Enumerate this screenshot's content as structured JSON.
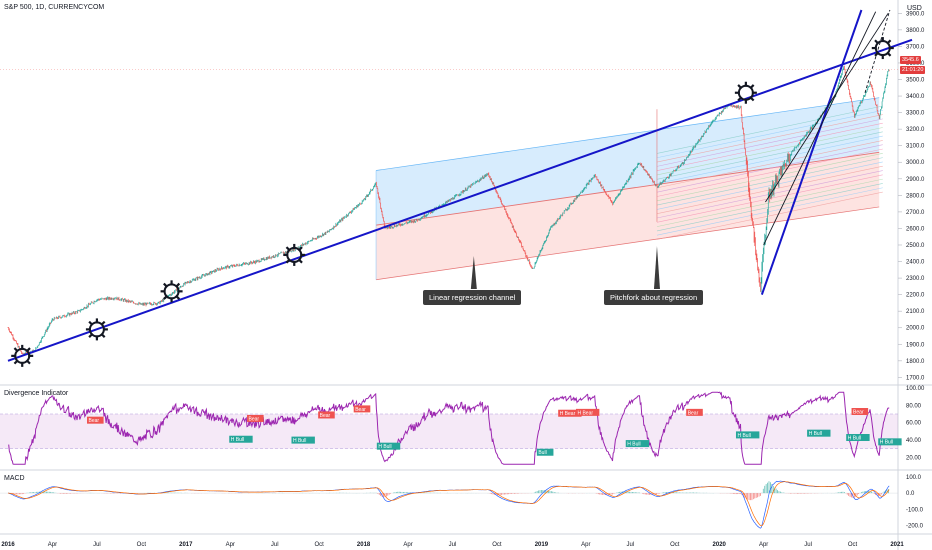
{
  "header": {
    "symbol": "S&P 500, 1D, CURRENCYCOM",
    "currency": "USD"
  },
  "price_tags": {
    "last_price": "3545.6",
    "countdown": "21:01:20"
  },
  "annotations": {
    "linear_regression": "Linear regression channel",
    "pitchfork": "Pitchfork about regression"
  },
  "divergence": {
    "title": "Divergence Indicator",
    "bear_label": "Bear",
    "hbear_label": "H Bear",
    "bull_label": "Bull",
    "hbull_label": "H Bull"
  },
  "macd": {
    "title": "MACD"
  },
  "colors": {
    "bull": "#26a69a",
    "bear": "#ef5350",
    "regression_line": "#1515c8",
    "divergence_line": "#9c27b0",
    "macd_line": "#2962ff",
    "signal_line": "#ff6d00"
  },
  "chart_data": [
    {
      "type": "candlestick",
      "panel": "price",
      "x_ticks": [
        "2016",
        "Apr",
        "Jul",
        "Oct",
        "2017",
        "Apr",
        "Jul",
        "Oct",
        "2018",
        "Apr",
        "Jul",
        "Oct",
        "2019",
        "Apr",
        "Jul",
        "Oct",
        "2020",
        "Apr",
        "Jul",
        "Oct",
        "2021"
      ],
      "y_ticks": [
        1700,
        1800,
        1900,
        2000,
        2100,
        2200,
        2300,
        2400,
        2500,
        2600,
        2700,
        2800,
        2900,
        3000,
        3100,
        3200,
        3300,
        3400,
        3500,
        3600,
        3700,
        3800,
        3900
      ],
      "ylim": [
        1660,
        3920
      ],
      "close_points": [
        [
          2016.0,
          2000
        ],
        [
          2016.08,
          1840
        ],
        [
          2016.15,
          1860
        ],
        [
          2016.25,
          2050
        ],
        [
          2016.4,
          2100
        ],
        [
          2016.5,
          2170
        ],
        [
          2016.6,
          2180
        ],
        [
          2016.75,
          2140
        ],
        [
          2016.85,
          2150
        ],
        [
          2017.0,
          2270
        ],
        [
          2017.2,
          2360
        ],
        [
          2017.4,
          2400
        ],
        [
          2017.6,
          2470
        ],
        [
          2017.8,
          2580
        ],
        [
          2018.0,
          2770
        ],
        [
          2018.07,
          2870
        ],
        [
          2018.12,
          2600
        ],
        [
          2018.3,
          2650
        ],
        [
          2018.5,
          2780
        ],
        [
          2018.7,
          2930
        ],
        [
          2018.8,
          2700
        ],
        [
          2018.95,
          2350
        ],
        [
          2019.05,
          2600
        ],
        [
          2019.3,
          2920
        ],
        [
          2019.4,
          2750
        ],
        [
          2019.55,
          3000
        ],
        [
          2019.65,
          2850
        ],
        [
          2019.8,
          3000
        ],
        [
          2019.95,
          3230
        ],
        [
          2020.05,
          3350
        ],
        [
          2020.12,
          3330
        ],
        [
          2020.2,
          2500
        ],
        [
          2020.23,
          2240
        ],
        [
          2020.28,
          2800
        ],
        [
          2020.4,
          3050
        ],
        [
          2020.55,
          3250
        ],
        [
          2020.65,
          3400
        ],
        [
          2020.7,
          3580
        ],
        [
          2020.76,
          3280
        ],
        [
          2020.85,
          3480
        ],
        [
          2020.9,
          3270
        ],
        [
          2020.95,
          3560
        ]
      ],
      "regression_line": [
        [
          2016.0,
          1800
        ],
        [
          2020.98,
          3720
        ]
      ],
      "linear_regression_channel": {
        "x_range": [
          2018.07,
          2020.9
        ],
        "upper": [
          2950,
          3390
        ],
        "center": [
          2620,
          3060
        ],
        "lower": [
          2290,
          2730
        ]
      },
      "pitchfork_anchor_x": 2019.65,
      "marked_points": [
        [
          2016.08,
          1830
        ],
        [
          2016.5,
          1990
        ],
        [
          2016.92,
          2220
        ],
        [
          2017.61,
          2440
        ],
        [
          2020.15,
          3420
        ],
        [
          2020.92,
          3690
        ]
      ]
    },
    {
      "type": "line",
      "panel": "Divergence Indicator",
      "y_ticks": [
        20,
        40,
        60,
        80,
        100
      ],
      "ylim": [
        10,
        100
      ],
      "band": [
        30,
        70
      ]
    },
    {
      "type": "line",
      "panel": "MACD",
      "y_ticks": [
        -200,
        -100,
        0,
        100
      ],
      "ylim": [
        -240,
        130
      ]
    }
  ]
}
